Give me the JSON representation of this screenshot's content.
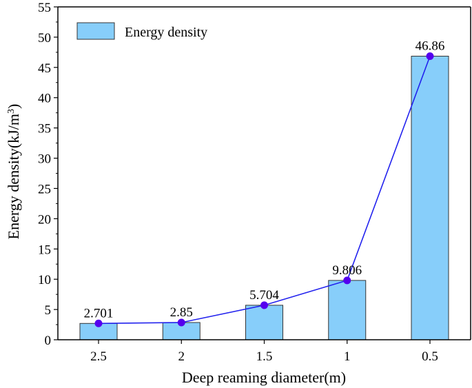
{
  "chart_data": {
    "type": "bar",
    "categories": [
      "2.5",
      "2",
      "1.5",
      "1",
      "0.5"
    ],
    "values": [
      2.701,
      2.85,
      5.704,
      9.806,
      46.86
    ],
    "data_labels": [
      "2.701",
      "2.85",
      "5.704",
      "9.806",
      "46.86"
    ],
    "series": [
      {
        "name": "Energy density",
        "values": [
          2.701,
          2.85,
          5.704,
          9.806,
          46.86
        ]
      }
    ],
    "overlay_line": {
      "values": [
        2.701,
        2.85,
        5.704,
        9.806,
        46.86
      ],
      "color": "#2222ee",
      "marker_color": "#5500ee"
    },
    "xlabel": "Deep reaming diameter(m)",
    "ylabel_main": "Energy density(kJ/m",
    "ylabel_sup": "3",
    "ylabel_end": ")",
    "ylim": [
      0,
      55
    ],
    "yticks": [
      0,
      5,
      10,
      15,
      20,
      25,
      30,
      35,
      40,
      45,
      50,
      55
    ],
    "legend": {
      "label": "Energy density",
      "placement": "top-left"
    },
    "grid": false,
    "colors": {
      "bar_fill": "#87cefa",
      "bar_stroke": "#333333",
      "axis": "#000000"
    }
  }
}
